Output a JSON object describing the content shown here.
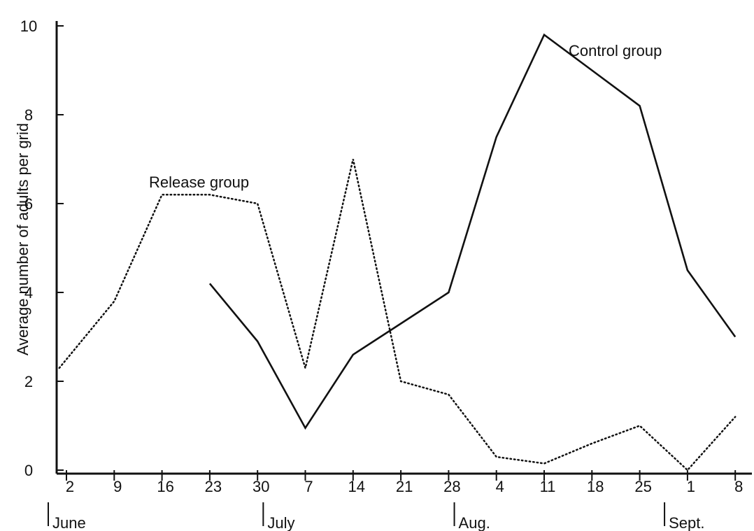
{
  "chart_data": {
    "type": "line",
    "ylabel": "Average number of adults per grid",
    "ylim": [
      0,
      10
    ],
    "yticks": [
      "0",
      "2",
      "4",
      "6",
      "8",
      "10"
    ],
    "xticks": [
      "2",
      "9",
      "16",
      "23",
      "30",
      "7",
      "14",
      "21",
      "28",
      "4",
      "11",
      "18",
      "25",
      "1",
      "8"
    ],
    "months": [
      {
        "label": "June",
        "at_tick": 0
      },
      {
        "label": "July",
        "at_tick": 4.5
      },
      {
        "label": "Aug.",
        "at_tick": 8.5
      },
      {
        "label": "Sept.",
        "at_tick": 12.9
      }
    ],
    "series": [
      {
        "name": "Release group",
        "style": "dotted",
        "color": "#111111",
        "points": [
          [
            -0.15,
            2.3
          ],
          [
            1,
            3.8
          ],
          [
            2,
            6.2
          ],
          [
            3,
            6.2
          ],
          [
            4,
            6.0
          ],
          [
            5,
            2.3
          ],
          [
            6,
            7.0
          ],
          [
            7,
            2.0
          ],
          [
            8,
            1.7
          ],
          [
            9,
            0.3
          ],
          [
            10,
            0.15
          ],
          [
            11,
            0.6
          ],
          [
            12,
            1.0
          ],
          [
            13,
            0.0
          ],
          [
            14,
            1.2
          ]
        ]
      },
      {
        "name": "Control group",
        "style": "solid",
        "color": "#111111",
        "points": [
          [
            3,
            4.2
          ],
          [
            4,
            2.9
          ],
          [
            5,
            0.95
          ],
          [
            6,
            2.6
          ],
          [
            7,
            3.3
          ],
          [
            8,
            4.0
          ],
          [
            9,
            7.5
          ],
          [
            10,
            9.8
          ],
          [
            11,
            9.0
          ],
          [
            12,
            8.2
          ],
          [
            13,
            4.5
          ],
          [
            14,
            3.0
          ]
        ]
      }
    ]
  }
}
